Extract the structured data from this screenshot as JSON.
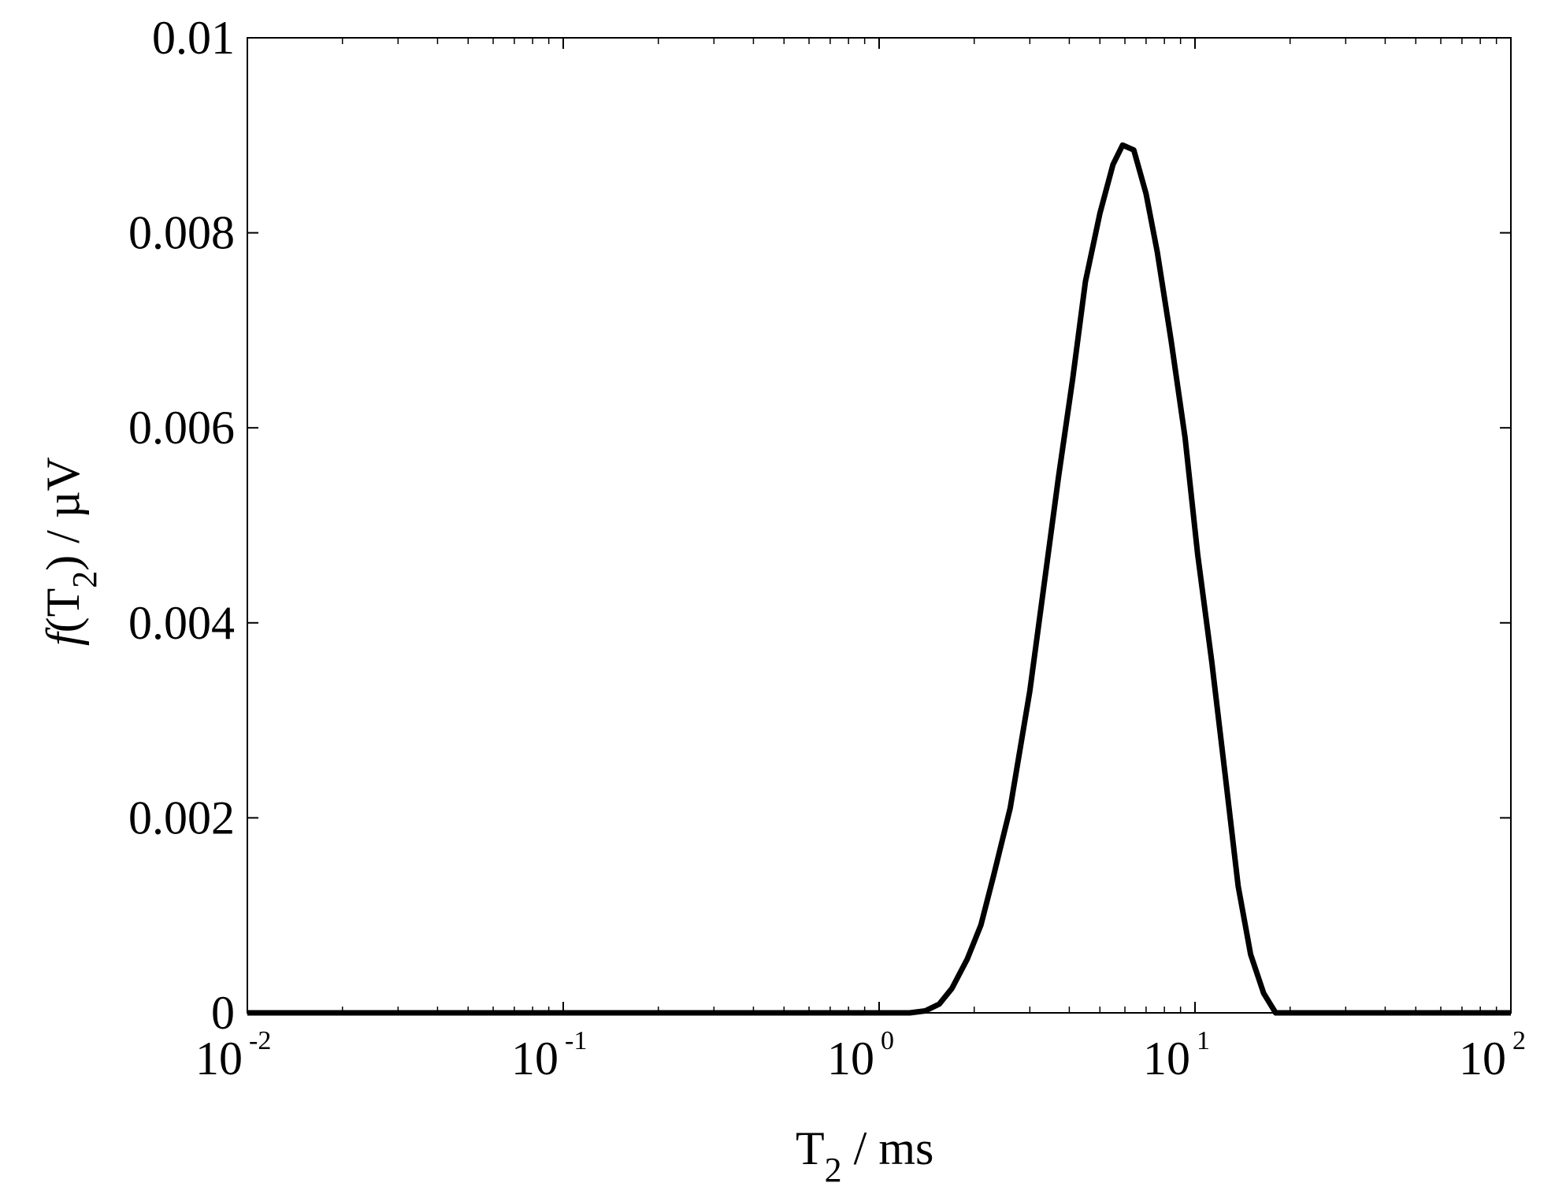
{
  "chart_data": {
    "type": "line",
    "title": "",
    "xlabel": {
      "main": "T",
      "sub": "2",
      "rest": " / ms"
    },
    "ylabel": {
      "func": "f",
      "open": "(T",
      "sub": "2",
      "rest": ") / µV"
    },
    "xscale": "log",
    "xlim": [
      0.01,
      100
    ],
    "ylim": [
      0,
      0.01
    ],
    "grid": false,
    "x_ticks": [
      {
        "base": "10",
        "exp": "-2",
        "value": 0.01
      },
      {
        "base": "10",
        "exp": "-1",
        "value": 0.1
      },
      {
        "base": "10",
        "exp": "0",
        "value": 1
      },
      {
        "base": "10",
        "exp": "1",
        "value": 10
      },
      {
        "base": "10",
        "exp": "2",
        "value": 100
      }
    ],
    "y_ticks": [
      {
        "label": "0",
        "value": 0
      },
      {
        "label": "0.002",
        "value": 0.002
      },
      {
        "label": "0.004",
        "value": 0.004
      },
      {
        "label": "0.006",
        "value": 0.006
      },
      {
        "label": "0.008",
        "value": 0.008
      },
      {
        "label": "0.01",
        "value": 0.01
      }
    ],
    "series": [
      {
        "color": "#000000",
        "x": [
          0.01,
          0.1,
          1.0,
          1.25,
          1.4,
          1.55,
          1.7,
          1.9,
          2.1,
          2.3,
          2.6,
          3.0,
          3.3,
          3.7,
          4.1,
          4.5,
          5.0,
          5.5,
          5.9,
          6.4,
          7.0,
          7.6,
          8.4,
          9.3,
          10.2,
          11.3,
          12.5,
          13.7,
          15.0,
          16.5,
          18.0,
          20.0,
          30.0,
          100.0
        ],
        "y": [
          0,
          0,
          0,
          0,
          2e-05,
          9e-05,
          0.00025,
          0.00055,
          0.0009,
          0.0014,
          0.0021,
          0.0033,
          0.0043,
          0.0055,
          0.0065,
          0.0075,
          0.0082,
          0.0087,
          0.0089,
          0.00885,
          0.0084,
          0.0078,
          0.0069,
          0.0059,
          0.0047,
          0.0036,
          0.0024,
          0.0013,
          0.0006,
          0.0002,
          0,
          0,
          0,
          0
        ]
      }
    ]
  }
}
